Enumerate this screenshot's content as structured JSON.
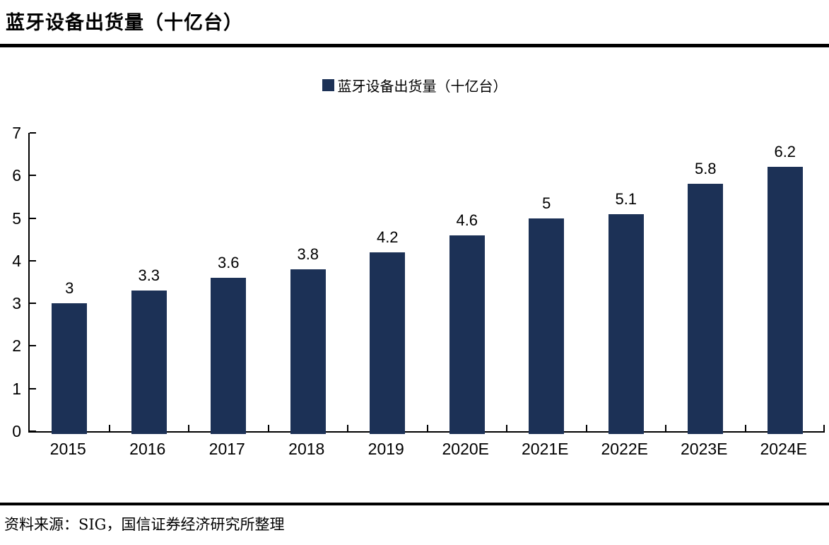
{
  "header": {
    "title": "蓝牙设备出货量（十亿台）"
  },
  "legend": {
    "label": "蓝牙设备出货量（十亿台）",
    "swatch_color": "#1c3156"
  },
  "chart_data": {
    "type": "bar",
    "title": "蓝牙设备出货量（十亿台）",
    "categories": [
      "2015",
      "2016",
      "2017",
      "2018",
      "2019",
      "2020E",
      "2021E",
      "2022E",
      "2023E",
      "2024E"
    ],
    "values": [
      3,
      3.3,
      3.6,
      3.8,
      4.2,
      4.6,
      5,
      5.1,
      5.8,
      6.2
    ],
    "value_labels": [
      "3",
      "3.3",
      "3.6",
      "3.8",
      "4.2",
      "4.6",
      "5",
      "5.1",
      "5.8",
      "6.2"
    ],
    "xlabel": "",
    "ylabel": "",
    "ylim": [
      0,
      7
    ],
    "yticks": [
      0,
      1,
      2,
      3,
      4,
      5,
      6,
      7
    ],
    "grid": false,
    "legend_position": "top",
    "bar_color": "#1c3156"
  },
  "footer": {
    "source": "资料来源：SIG，国信证券经济研究所整理"
  }
}
